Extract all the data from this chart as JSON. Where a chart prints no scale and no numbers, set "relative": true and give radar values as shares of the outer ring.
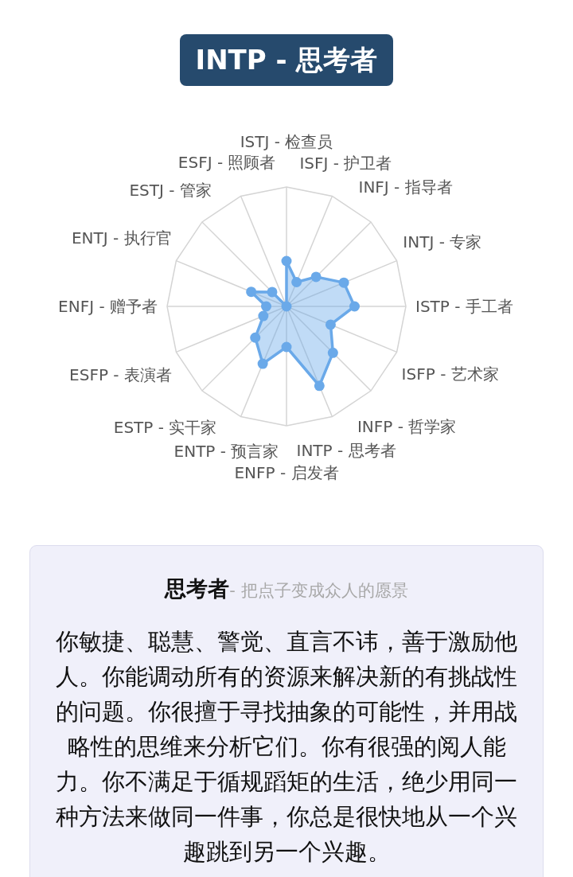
{
  "chart_data": {
    "type": "radar",
    "title": "INTP - 思考者",
    "categories": [
      "ISTJ - 检查员",
      "ISFJ - 护卫者",
      "INFJ - 指导者",
      "INTJ - 专家",
      "ISTP - 手工者",
      "ISFP - 艺术家",
      "INFP - 哲学家",
      "INTP - 思考者",
      "ENFP - 启发者",
      "ENTP - 预言家",
      "ESTP - 实干家",
      "ESFP - 表演者",
      "ENFJ - 赠予者",
      "ENTJ - 执行官",
      "ESTJ - 管家",
      "ESFJ - 照顾者"
    ],
    "series": [
      {
        "color": "#6aa9e9",
        "values": [
          0.38,
          0.22,
          0.35,
          0.52,
          0.57,
          0.4,
          0.55,
          0.72,
          0.34,
          0.52,
          0.37,
          0.21,
          0.17,
          0.32,
          0.17,
          0
        ]
      }
    ],
    "relative": true,
    "grid": true,
    "marker": "circle",
    "annotations": [
      "思考者",
      "- 把点子变成众人的愿景",
      "你敏捷、聪慧、警觉、直言不讳，善于激励他人。你能调动所有的资源来解决新的有挑战性的问题。你很擅于寻找抽象的可能性，并用战略性的思维来分析它们。你有很强的阅人能力。你不满足于循规蹈矩的生活，绝少用同一种方法来做同一件事，你总是很快地从一个兴趣跳到另一个兴趣。"
    ]
  }
}
